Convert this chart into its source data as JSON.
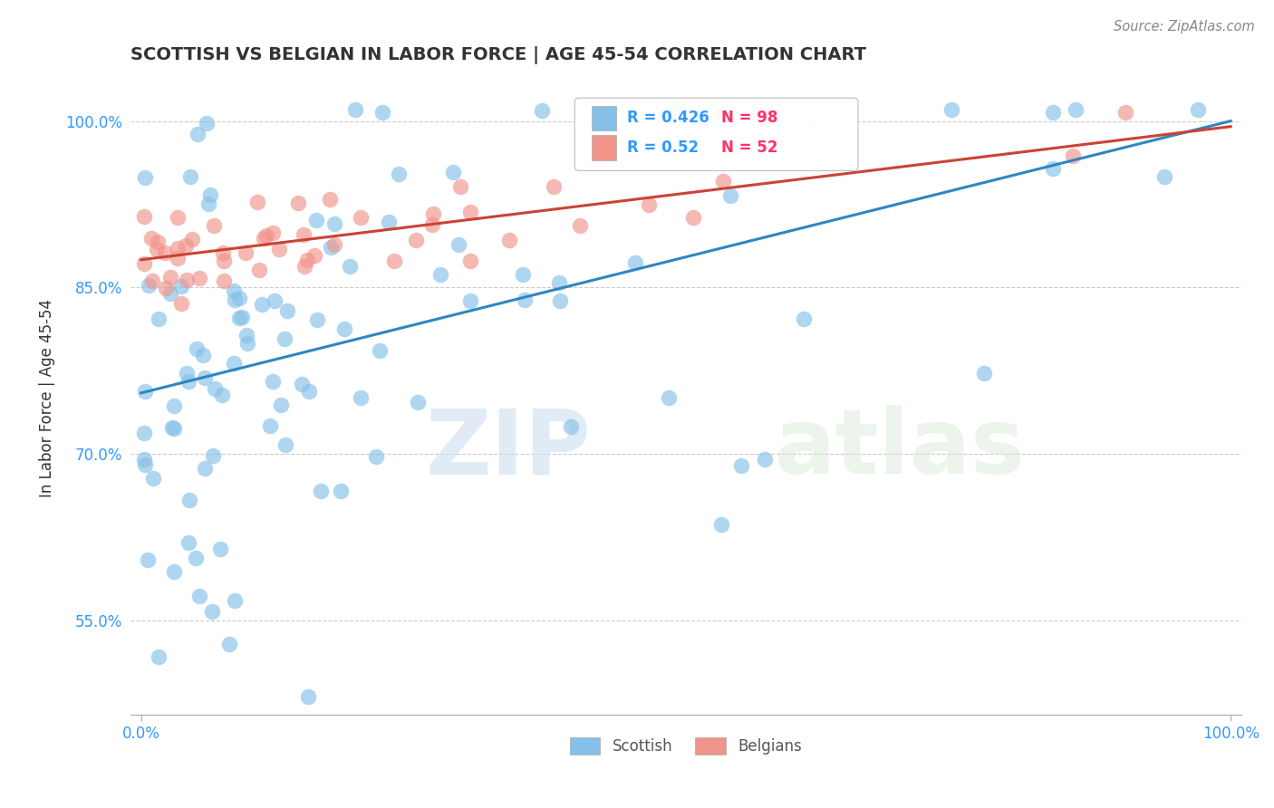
{
  "title": "SCOTTISH VS BELGIAN IN LABOR FORCE | AGE 45-54 CORRELATION CHART",
  "source": "Source: ZipAtlas.com",
  "ylabel": "In Labor Force | Age 45-54",
  "xlim": [
    -0.01,
    1.01
  ],
  "ylim": [
    0.465,
    1.035
  ],
  "yticks": [
    0.55,
    0.7,
    0.85,
    1.0
  ],
  "ytick_labels": [
    "55.0%",
    "70.0%",
    "85.0%",
    "100.0%"
  ],
  "xtick_labels": [
    "0.0%",
    "100.0%"
  ],
  "xtick_pos": [
    0.0,
    1.0
  ],
  "watermark_zip": "ZIP",
  "watermark_atlas": "atlas",
  "scottish_color": "#85C1E9",
  "scottish_edge": "#85C1E9",
  "belgian_color": "#F1948A",
  "belgian_edge": "#F1948A",
  "scottish_R": 0.426,
  "scottish_N": 98,
  "belgian_R": 0.52,
  "belgian_N": 52,
  "scottish_line_color": "#2E86C1",
  "belgian_line_color": "#CB4335",
  "legend_R_color": "#3399FF",
  "legend_N_color": "#FF3366",
  "background_color": "#FFFFFF",
  "grid_color": "#CCCCCC",
  "title_color": "#333333",
  "source_color": "#888888",
  "axis_label_color": "#333333",
  "tick_color": "#3399FF"
}
